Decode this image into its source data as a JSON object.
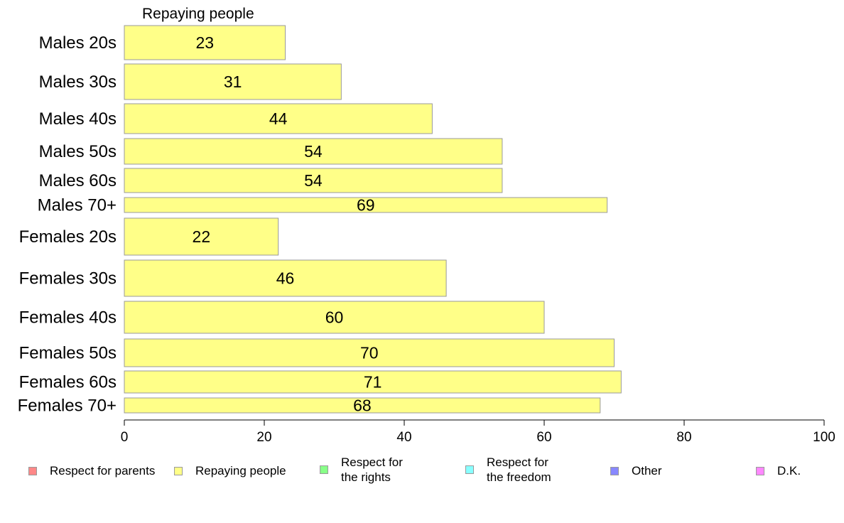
{
  "chart_data": {
    "type": "bar",
    "orientation": "horizontal",
    "title": "Repaying people",
    "categories": [
      "Males 20s",
      "Males 30s",
      "Males 40s",
      "Males 50s",
      "Males 60s",
      "Males 70+",
      "Females 20s",
      "Females 30s",
      "Females 40s",
      "Females 50s",
      "Females 60s",
      "Females 70+"
    ],
    "series": [
      {
        "name": "Repaying people",
        "values": [
          23,
          31,
          44,
          54,
          54,
          69,
          22,
          46,
          60,
          70,
          71,
          68
        ],
        "color": "#ffff88"
      }
    ],
    "xlim": [
      0,
      100
    ],
    "xticks": [
      0,
      20,
      40,
      60,
      80,
      100
    ],
    "grid": false,
    "legend_placement": "bottom"
  },
  "legend": {
    "items": [
      {
        "label": "Respect for parents",
        "color": "#ff8888"
      },
      {
        "label": "Repaying people",
        "color": "#ffff88"
      },
      {
        "label": "Respect for\nthe rights",
        "color": "#88ff88"
      },
      {
        "label": "Respect for\nthe freedom",
        "color": "#88ffff"
      },
      {
        "label": "Other",
        "color": "#8888ff"
      },
      {
        "label": "D.K.",
        "color": "#ff88ff"
      }
    ]
  }
}
